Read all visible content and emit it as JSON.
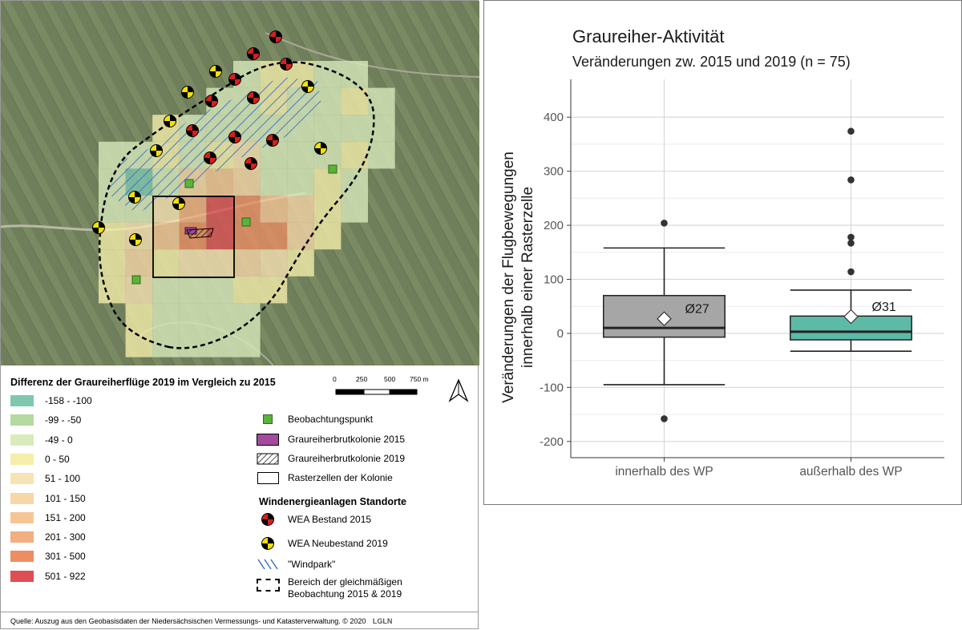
{
  "map": {
    "legend_title": "Differenz der Graureiherflüge 2019 im Vergleich zu 2015",
    "classes": [
      {
        "label": "-158 - -100",
        "color": "#7fc8b0"
      },
      {
        "label": "-99 - -50",
        "color": "#b4d9a1"
      },
      {
        "label": "-49 - 0",
        "color": "#d9ebbd"
      },
      {
        "label": "0 - 50",
        "color": "#f6eeaa"
      },
      {
        "label": "51 - 100",
        "color": "#f8e3b4"
      },
      {
        "label": "101 - 150",
        "color": "#f7d6a8"
      },
      {
        "label": "151 - 200",
        "color": "#f6c596"
      },
      {
        "label": "201 - 300",
        "color": "#f2ad80"
      },
      {
        "label": "301 - 500",
        "color": "#ec8d63"
      },
      {
        "label": "501 - 922",
        "color": "#de4e53"
      }
    ],
    "scalebar": {
      "labels": [
        "0",
        "250",
        "500",
        "750 m"
      ]
    },
    "symbols": {
      "observation_point": "Beobachtungspunkt",
      "colony_2015": "Graureiherbrutkolonie 2015",
      "colony_2019": "Graureiherbrutkolonie 2019",
      "colony_cells": "Rasterzellen der Kolonie",
      "turbines_heading": "Windenergieanlagen Standorte",
      "wea_2015": "WEA Bestand 2015",
      "wea_2019": "WEA Neubestand 2019",
      "windpark": "\"Windpark\"",
      "observation_area_line1": "Bereich der gleichmäßigen",
      "observation_area_line2": "Beobachtung 2015 & 2019"
    },
    "colors": {
      "wea_2015": "#d81e1e",
      "wea_2019": "#f2e205",
      "observation_point": "#5bb33a",
      "colony_2015": "#a24a9c",
      "windpark_hatch": "#3d6fc9"
    },
    "source": "Quelle: Auszug aus den Geobasisdaten der Niedersächsischen Vermessungs- und Katasterverwaltung. © 2020",
    "logo_text": "LGLN"
  },
  "chart_data": {
    "type": "boxplot",
    "title": "Graureiher-Aktivität",
    "subtitle": "Veränderungen zw. 2015 und 2019 (n = 75)",
    "ylabel_line1": "Veränderungen der Flugbewegungen",
    "ylabel_line2": "innerhalb einer Rasterzelle",
    "ylim": [
      -230,
      470
    ],
    "yticks": [
      -200,
      -100,
      0,
      100,
      200,
      300,
      400
    ],
    "categories": [
      "innerhalb des WP",
      "außerhalb des WP"
    ],
    "boxes": [
      {
        "category": "innerhalb des WP",
        "whisker_low": -95,
        "q1": -7,
        "median": 10,
        "q3": 70,
        "whisker_high": 158,
        "mean": 27,
        "mean_label": "Ø27",
        "outliers": [
          204,
          -158
        ],
        "color": "#a6a6a6"
      },
      {
        "category": "außerhalb des WP",
        "whisker_low": -33,
        "q1": -12,
        "median": 3,
        "q3": 32,
        "whisker_high": 80,
        "mean": 31,
        "mean_label": "Ø31",
        "outliers": [
          374,
          284,
          178,
          167,
          114
        ],
        "color": "#5dbaa6"
      }
    ],
    "grid": true
  }
}
